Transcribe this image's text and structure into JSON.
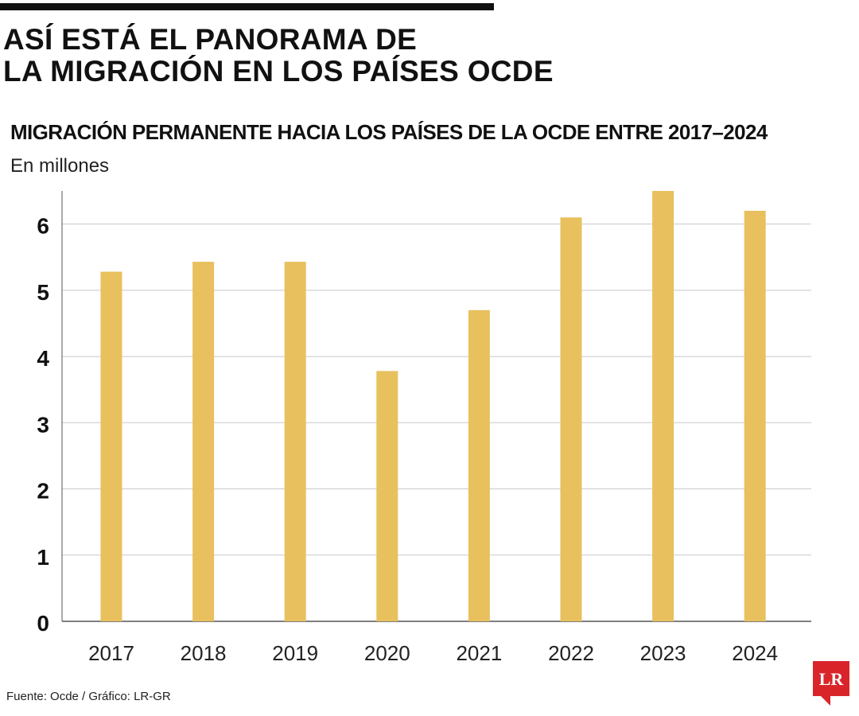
{
  "headline": {
    "line1": "ASÍ ESTÁ EL PANORAMA DE",
    "line2": "LA MIGRACIÓN EN LOS PAÍSES OCDE"
  },
  "chart_data": {
    "type": "bar",
    "title": "MIGRACIÓN PERMANENTE HACIA LOS PAÍSES DE LA OCDE ENTRE 2017–2024",
    "subtitle": "En millones",
    "categories": [
      "2017",
      "2018",
      "2019",
      "2020",
      "2021",
      "2022",
      "2023",
      "2024"
    ],
    "values": [
      5.28,
      5.43,
      5.43,
      3.78,
      4.7,
      6.1,
      6.5,
      6.2
    ],
    "yticks": [
      "0",
      "1",
      "2",
      "3",
      "4",
      "5",
      "6"
    ],
    "ylim": [
      0,
      6.5
    ],
    "grid": true,
    "bar_color": "#E8C05E",
    "grid_color": "#C9C9C9",
    "axis_color": "#555555"
  },
  "source": "Fuente: Ocde / Gráfico: LR-GR",
  "logo": {
    "text": "LR",
    "color": "#D9252A"
  }
}
